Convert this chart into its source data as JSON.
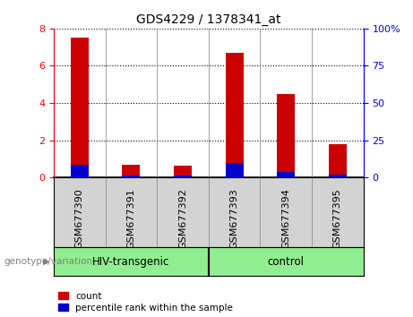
{
  "title": "GDS4229 / 1378341_at",
  "categories": [
    "GSM677390",
    "GSM677391",
    "GSM677392",
    "GSM677393",
    "GSM677394",
    "GSM677395"
  ],
  "red_values": [
    7.5,
    0.7,
    0.65,
    6.7,
    4.5,
    1.8
  ],
  "blue_values": [
    0.68,
    0.12,
    0.1,
    0.78,
    0.3,
    0.15
  ],
  "ylim_left": [
    0,
    8
  ],
  "ylim_right": [
    0,
    100
  ],
  "yticks_left": [
    0,
    2,
    4,
    6,
    8
  ],
  "yticks_right": [
    0,
    25,
    50,
    75,
    100
  ],
  "ytick_labels_right": [
    "0",
    "25",
    "50",
    "75",
    "100%"
  ],
  "groups": [
    {
      "label": "HIV-transgenic",
      "indices": [
        0,
        1,
        2
      ]
    },
    {
      "label": "control",
      "indices": [
        3,
        4,
        5
      ]
    }
  ],
  "group_label_prefix": "genotype/variation",
  "legend_items": [
    {
      "label": "count",
      "color": "#cc0000"
    },
    {
      "label": "percentile rank within the sample",
      "color": "#0000cc"
    }
  ],
  "red_color": "#cc0000",
  "blue_color": "#0000cc",
  "bar_width": 0.35,
  "group_bg": "#90EE90",
  "label_bg": "#d3d3d3",
  "divider_color": "#555555"
}
